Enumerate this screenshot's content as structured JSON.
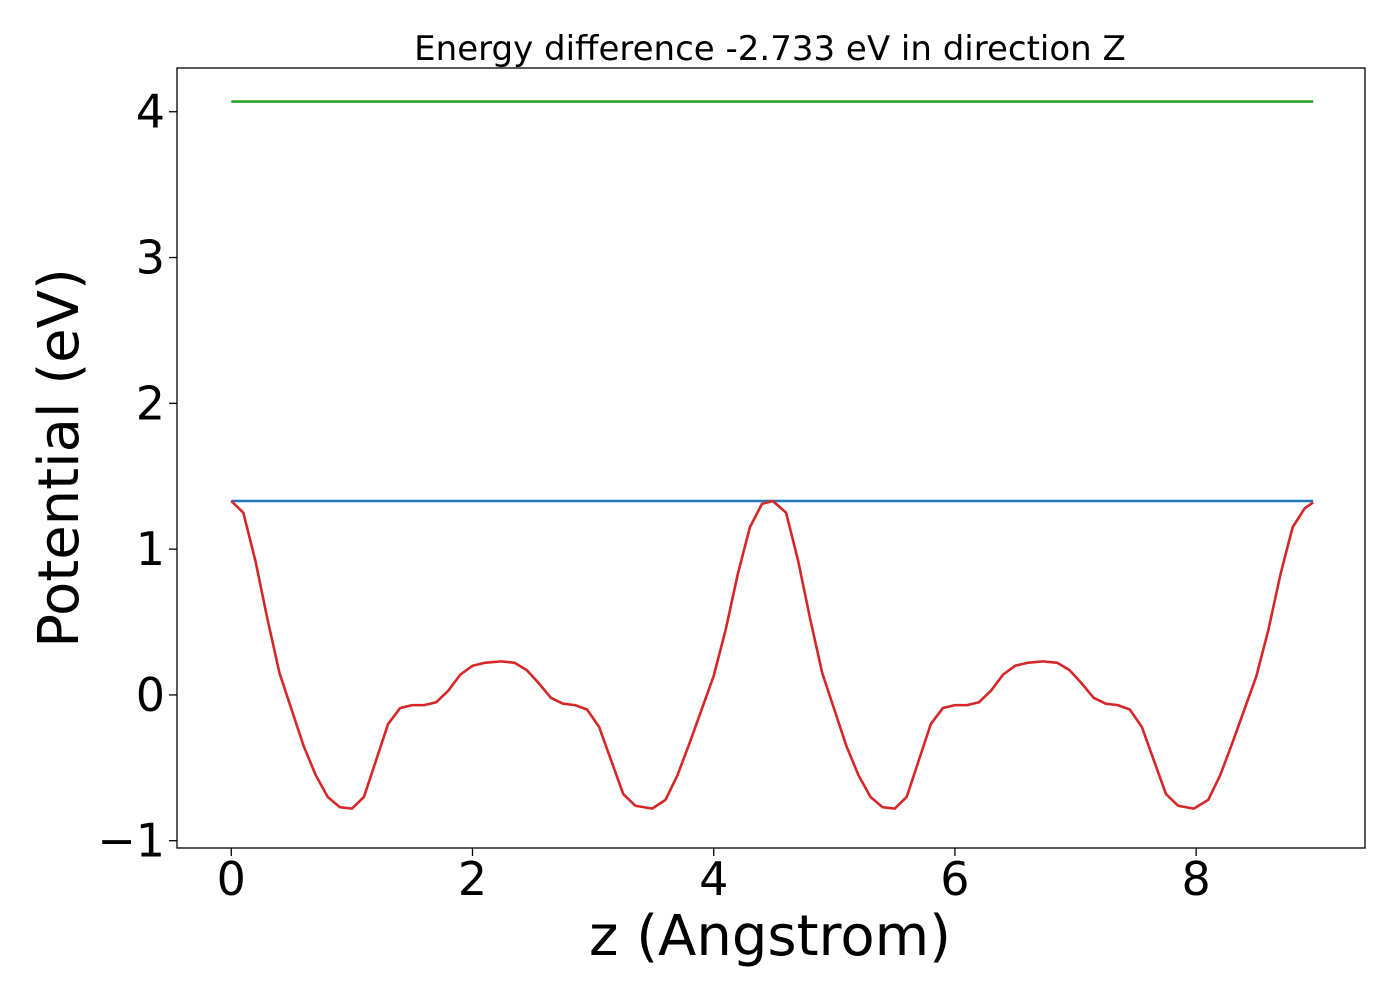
{
  "chart_data": {
    "type": "line",
    "title": "Energy difference -2.733 eV in direction Z",
    "xlabel": "z (Angstrom)",
    "ylabel": "Potential (eV)",
    "xlim": [
      -0.45,
      9.4
    ],
    "ylim": [
      -1.05,
      4.3
    ],
    "x_ticks": [
      0,
      2,
      4,
      6,
      8
    ],
    "x_tick_labels": [
      "0",
      "2",
      "4",
      "6",
      "8"
    ],
    "y_ticks": [
      -1,
      0,
      1,
      2,
      3,
      4
    ],
    "y_tick_labels": [
      "−1",
      "0",
      "1",
      "2",
      "3",
      "4"
    ],
    "grid": false,
    "series": [
      {
        "color": "#2ca02c",
        "x": [
          0,
          8.97
        ],
        "y": [
          4.07,
          4.07
        ]
      },
      {
        "color": "#1f77b4",
        "x": [
          0,
          8.97
        ],
        "y": [
          1.33,
          1.33
        ]
      },
      {
        "color": "#d62728",
        "x": [
          0,
          0.1,
          0.2,
          0.3,
          0.4,
          0.5,
          0.6,
          0.7,
          0.8,
          0.9,
          1.0,
          1.1,
          1.2,
          1.3,
          1.4,
          1.5,
          1.6,
          1.7,
          1.8,
          1.9,
          2.0,
          2.1,
          2.24,
          2.35,
          2.45,
          2.55,
          2.65,
          2.75,
          2.85,
          2.95,
          3.05,
          3.15,
          3.25,
          3.35,
          3.49,
          3.6,
          3.7,
          3.8,
          3.9,
          4.0,
          4.1,
          4.2,
          4.3,
          4.4,
          4.49,
          4.6,
          4.7,
          4.8,
          4.9,
          5.0,
          5.1,
          5.2,
          5.3,
          5.4,
          5.5,
          5.6,
          5.7,
          5.8,
          5.9,
          6.0,
          6.1,
          6.2,
          6.3,
          6.4,
          6.5,
          6.6,
          6.73,
          6.85,
          6.95,
          7.05,
          7.15,
          7.25,
          7.35,
          7.45,
          7.55,
          7.65,
          7.75,
          7.85,
          7.98,
          8.1,
          8.2,
          8.3,
          8.4,
          8.5,
          8.6,
          8.7,
          8.8,
          8.9,
          8.97
        ],
        "y": [
          1.33,
          1.25,
          0.92,
          0.52,
          0.15,
          -0.1,
          -0.35,
          -0.55,
          -0.7,
          -0.77,
          -0.78,
          -0.7,
          -0.45,
          -0.2,
          -0.09,
          -0.07,
          -0.07,
          -0.05,
          0.03,
          0.14,
          0.2,
          0.22,
          0.23,
          0.22,
          0.17,
          0.08,
          -0.02,
          -0.06,
          -0.07,
          -0.1,
          -0.22,
          -0.45,
          -0.68,
          -0.76,
          -0.78,
          -0.72,
          -0.55,
          -0.33,
          -0.1,
          0.13,
          0.45,
          0.83,
          1.15,
          1.31,
          1.33,
          1.25,
          0.92,
          0.52,
          0.15,
          -0.1,
          -0.35,
          -0.55,
          -0.7,
          -0.77,
          -0.78,
          -0.7,
          -0.45,
          -0.2,
          -0.09,
          -0.07,
          -0.07,
          -0.05,
          0.03,
          0.14,
          0.2,
          0.22,
          0.23,
          0.22,
          0.17,
          0.08,
          -0.02,
          -0.06,
          -0.07,
          -0.1,
          -0.22,
          -0.45,
          -0.68,
          -0.76,
          -0.78,
          -0.72,
          -0.55,
          -0.33,
          -0.1,
          0.13,
          0.45,
          0.83,
          1.15,
          1.28,
          1.32
        ]
      }
    ]
  }
}
